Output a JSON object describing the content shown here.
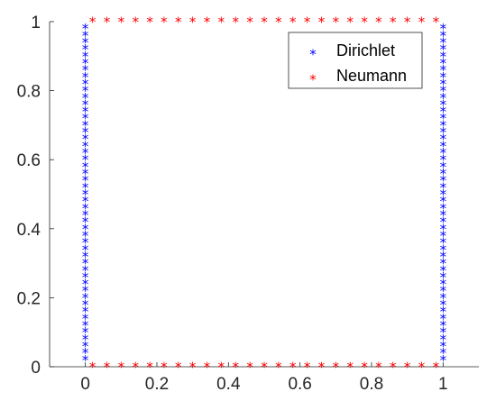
{
  "chart_data": {
    "type": "scatter",
    "title": "",
    "xlabel": "",
    "ylabel": "",
    "xlim": [
      -0.1,
      1.1
    ],
    "ylim": [
      0,
      1
    ],
    "xticks": [
      0,
      0.2,
      0.4,
      0.6,
      0.8,
      1
    ],
    "yticks": [
      0,
      0.2,
      0.4,
      0.6,
      0.8,
      1
    ],
    "xtick_labels": [
      "0",
      "0.2",
      "0.4",
      "0.6",
      "0.8",
      "1"
    ],
    "ytick_labels": [
      "0",
      "0.2",
      "0.4",
      "0.6",
      "0.8",
      "1"
    ],
    "grid": false,
    "box": "left-bottom axes only",
    "legend_position": "top-right",
    "marker": "*",
    "series": [
      {
        "name": "Dirichlet",
        "color": "#0000ff",
        "segments": [
          {
            "x": 0,
            "y_start": 0.02,
            "y_end": 0.98,
            "count": 49
          },
          {
            "x": 1,
            "y_start": 0.02,
            "y_end": 0.98,
            "count": 49
          }
        ]
      },
      {
        "name": "Neumann",
        "color": "#ff0000",
        "segments": [
          {
            "y": 0,
            "x_start": 0.02,
            "x_end": 0.98,
            "count": 25
          },
          {
            "y": 1,
            "x_start": 0.02,
            "x_end": 0.98,
            "count": 25
          }
        ]
      }
    ]
  }
}
